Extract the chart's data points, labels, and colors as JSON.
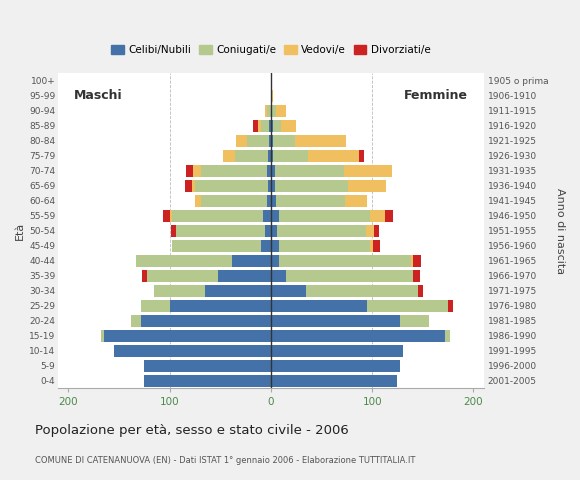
{
  "age_groups": [
    "100+",
    "95-99",
    "90-94",
    "85-89",
    "80-84",
    "75-79",
    "70-74",
    "65-69",
    "60-64",
    "55-59",
    "50-54",
    "45-49",
    "40-44",
    "35-39",
    "30-34",
    "25-29",
    "20-24",
    "15-19",
    "10-14",
    "5-9",
    "0-4"
  ],
  "birth_years": [
    "1905 o prima",
    "1906-1910",
    "1911-1915",
    "1916-1920",
    "1921-1925",
    "1926-1930",
    "1931-1935",
    "1936-1940",
    "1941-1945",
    "1946-1950",
    "1951-1955",
    "1956-1960",
    "1961-1965",
    "1966-1970",
    "1971-1975",
    "1976-1980",
    "1981-1985",
    "1986-1990",
    "1991-1995",
    "1996-2000",
    "2001-2005"
  ],
  "male": {
    "celibi": [
      0,
      0,
      0,
      2,
      2,
      3,
      4,
      3,
      4,
      8,
      6,
      10,
      38,
      52,
      65,
      100,
      128,
      165,
      155,
      125,
      125
    ],
    "coniugati": [
      0,
      0,
      4,
      8,
      22,
      32,
      65,
      72,
      65,
      90,
      88,
      88,
      95,
      70,
      50,
      28,
      10,
      3,
      0,
      0,
      0
    ],
    "vedovi": [
      0,
      0,
      2,
      3,
      10,
      12,
      8,
      3,
      6,
      2,
      0,
      0,
      0,
      0,
      0,
      0,
      0,
      0,
      0,
      0,
      0
    ],
    "divorziati": [
      0,
      0,
      0,
      5,
      0,
      0,
      7,
      7,
      0,
      7,
      5,
      0,
      0,
      5,
      0,
      0,
      0,
      0,
      0,
      0,
      0
    ]
  },
  "female": {
    "nubili": [
      0,
      0,
      0,
      2,
      2,
      2,
      4,
      4,
      5,
      8,
      6,
      8,
      8,
      15,
      35,
      95,
      128,
      172,
      130,
      128,
      125
    ],
    "coniugate": [
      0,
      0,
      5,
      8,
      22,
      35,
      68,
      72,
      68,
      90,
      88,
      90,
      130,
      125,
      110,
      80,
      28,
      5,
      0,
      0,
      0
    ],
    "vedove": [
      0,
      2,
      10,
      15,
      50,
      50,
      48,
      38,
      22,
      15,
      8,
      3,
      2,
      0,
      0,
      0,
      0,
      0,
      0,
      0,
      0
    ],
    "divorziate": [
      0,
      0,
      0,
      0,
      0,
      5,
      0,
      0,
      0,
      8,
      5,
      7,
      8,
      7,
      5,
      5,
      0,
      0,
      0,
      0,
      0
    ]
  },
  "colors": {
    "celibi": "#4472a8",
    "coniugati": "#b5c98e",
    "vedovi": "#f0c060",
    "divorziati": "#cc2222"
  },
  "xlim": 210,
  "title": "Popolazione per età, sesso e stato civile - 2006",
  "subtitle": "COMUNE DI CATENANUOVA (EN) - Dati ISTAT 1° gennaio 2006 - Elaborazione TUTTITALIA.IT",
  "legend_labels": [
    "Celibi/Nubili",
    "Coniugati/e",
    "Vedovi/e",
    "Divorziati/e"
  ],
  "bg_color": "#f0f0f0",
  "plot_bg": "#ffffff"
}
